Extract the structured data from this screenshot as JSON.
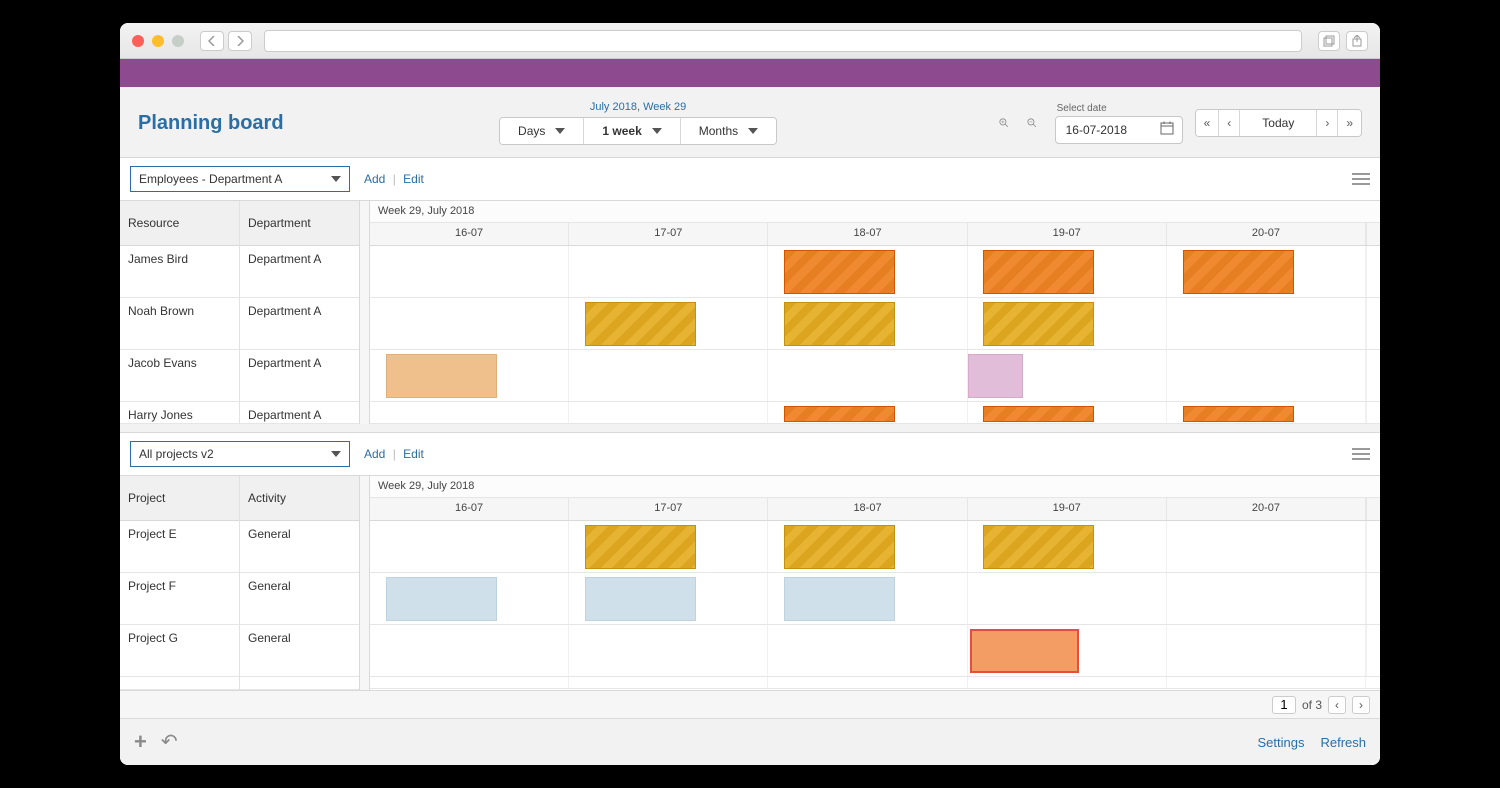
{
  "toolbar": {
    "title": "Planning board",
    "range_label": "July 2018, Week 29",
    "seg": {
      "days": "Days",
      "week": "1 week",
      "months": "Months"
    },
    "date_label": "Select date",
    "date_value": "16-07-2018",
    "today": "Today"
  },
  "section1": {
    "select": "Employees - Department A",
    "add": "Add",
    "edit": "Edit",
    "col1": "Resource",
    "col2": "Department",
    "week_label": "Week 29, July 2018",
    "days": [
      "16-07",
      "17-07",
      "18-07",
      "19-07",
      "20-07"
    ],
    "rows": [
      {
        "r": "James Bird",
        "d": "Department A",
        "tasks": [
          {
            "day": 2,
            "style": "stripe-orange"
          },
          {
            "day": 3,
            "style": "stripe-orange"
          },
          {
            "day": 4,
            "style": "stripe-orange"
          }
        ]
      },
      {
        "r": "Noah Brown",
        "d": "Department A",
        "tasks": [
          {
            "day": 1,
            "style": "stripe-yellow"
          },
          {
            "day": 2,
            "style": "stripe-yellow"
          },
          {
            "day": 3,
            "style": "stripe-yellow"
          }
        ]
      },
      {
        "r": "Jacob Evans",
        "d": "Department A",
        "tasks": [
          {
            "day": 0,
            "style": "peach"
          },
          {
            "day": 3,
            "style": "pink"
          }
        ]
      },
      {
        "r": "Harry Jones",
        "d": "Department A",
        "tasks": [
          {
            "day": 2,
            "style": "stripe-orange"
          },
          {
            "day": 3,
            "style": "stripe-orange"
          },
          {
            "day": 4,
            "style": "stripe-orange"
          }
        ],
        "trunc": true
      }
    ]
  },
  "section2": {
    "select": "All projects v2",
    "add": "Add",
    "edit": "Edit",
    "col1": "Project",
    "col2": "Activity",
    "week_label": "Week 29, July 2018",
    "days": [
      "16-07",
      "17-07",
      "18-07",
      "19-07",
      "20-07"
    ],
    "rows": [
      {
        "r": "Project E",
        "d": "General",
        "tasks": [
          {
            "day": 1,
            "style": "stripe-yellow"
          },
          {
            "day": 2,
            "style": "stripe-yellow"
          },
          {
            "day": 3,
            "style": "stripe-yellow"
          }
        ]
      },
      {
        "r": "Project F",
        "d": "General",
        "tasks": [
          {
            "day": 0,
            "style": "lightblue"
          },
          {
            "day": 1,
            "style": "lightblue"
          },
          {
            "day": 2,
            "style": "lightblue"
          }
        ]
      },
      {
        "r": "Project G",
        "d": "General",
        "tasks": [
          {
            "day": 3,
            "style": "orange-box"
          }
        ]
      }
    ]
  },
  "pager": {
    "page": "1",
    "of": "of 3"
  },
  "footer": {
    "settings": "Settings",
    "refresh": "Refresh"
  },
  "colors": {
    "accent": "#2a6ea6",
    "purple": "#8e4a8e",
    "stripe_orange": "#e67e22",
    "stripe_yellow": "#dba520",
    "peach": "#f0c08c",
    "pink": "#e2bdd9",
    "lightblue": "#cfe0ea",
    "orange_box": "#f39c64"
  }
}
